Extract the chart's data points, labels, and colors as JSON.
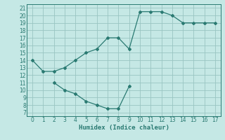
{
  "xlabel": "Humidex (Indice chaleur)",
  "bg_color": "#c5e8e5",
  "grid_color": "#99c5c2",
  "line_color": "#2a7a72",
  "spine_color": "#2a7a72",
  "xlim": [
    -0.5,
    17.5
  ],
  "ylim": [
    6.5,
    21.5
  ],
  "xticks": [
    0,
    1,
    2,
    3,
    4,
    5,
    6,
    7,
    8,
    9,
    10,
    11,
    12,
    13,
    14,
    15,
    16,
    17
  ],
  "yticks": [
    7,
    8,
    9,
    10,
    11,
    12,
    13,
    14,
    15,
    16,
    17,
    18,
    19,
    20,
    21
  ],
  "upper_x": [
    0,
    1,
    2,
    3,
    4,
    5,
    6,
    7,
    8,
    9,
    10,
    11,
    12,
    13,
    14,
    15,
    16,
    17
  ],
  "upper_y": [
    14,
    12.5,
    12.5,
    13,
    14,
    15,
    15.5,
    17,
    17,
    15.5,
    20.5,
    20.5,
    20.5,
    20,
    19,
    19,
    19,
    19
  ],
  "lower_x": [
    2,
    3,
    4,
    5,
    6,
    7,
    8,
    9
  ],
  "lower_y": [
    11,
    10,
    9.5,
    8.5,
    8,
    7.5,
    7.5,
    10.5
  ],
  "tick_fontsize": 5.5,
  "xlabel_fontsize": 6.5
}
